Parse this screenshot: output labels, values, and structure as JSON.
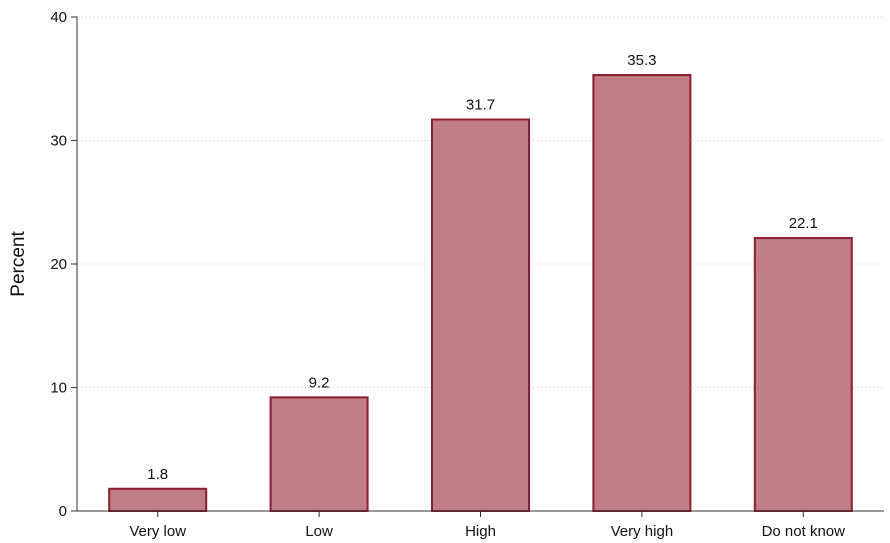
{
  "chart_data": {
    "type": "bar",
    "categories": [
      "Very low",
      "Low",
      "High",
      "Very high",
      "Do not know"
    ],
    "values": [
      1.8,
      9.2,
      31.7,
      35.3,
      22.1
    ],
    "data_labels": [
      "1.8",
      "9.2",
      "31.7",
      "35.3",
      "22.1"
    ],
    "title": "",
    "xlabel": "",
    "ylabel": "Percent",
    "ylim": [
      0,
      40
    ],
    "yticks": [
      0,
      10,
      20,
      30,
      40
    ],
    "ytick_labels": [
      "0",
      "10",
      "20",
      "30",
      "40"
    ],
    "grid": true,
    "bar_fill": "#bf7e86",
    "bar_stroke": "#8c1c30",
    "axis_color": "#333333",
    "grid_color": "#cccccc"
  }
}
